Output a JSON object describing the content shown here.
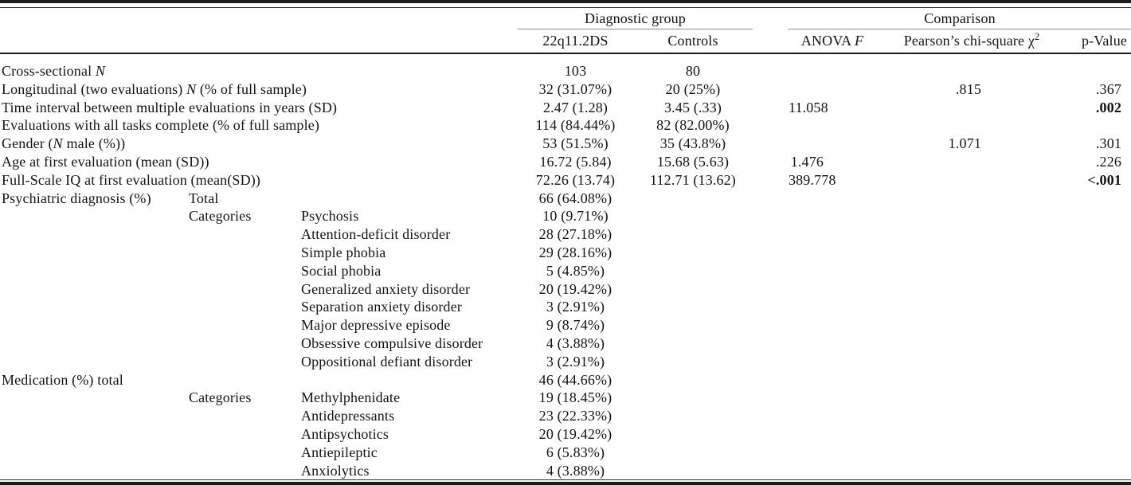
{
  "table": {
    "spanners": {
      "diagnostic": "Diagnostic group",
      "comparison": "Comparison"
    },
    "columns": {
      "ds": "22q11.2DS",
      "controls": "Controls",
      "anova": "ANOVA *F*",
      "chi": "Pearson’s chi-square χ^2",
      "p": "p-Value"
    },
    "rows": [
      {
        "label": "Cross-sectional *N*",
        "ds": "103",
        "controls": "80"
      },
      {
        "label": "Longitudinal (two evaluations) *N* (% of full sample)",
        "ds": "32 (31.07%)",
        "controls": "20 (25%)",
        "chi": ".815",
        "p": ".367"
      },
      {
        "label": "Time interval between multiple evaluations in years (SD)",
        "ds": "2.47 (1.28)",
        "controls": "3.45 (.33)",
        "anova": "11.058",
        "p": ".002",
        "p_bold": true
      },
      {
        "label": "Evaluations with all tasks complete (% of full sample)",
        "ds": "114 (84.44%)",
        "controls": "82 (82.00%)"
      },
      {
        "label": "Gender (*N* male (%))",
        "ds": "53 (51.5%)",
        "controls": "35 (43.8%)",
        "chi": "1.071",
        "p": ".301"
      },
      {
        "label": "Age at first evaluation (mean (SD))",
        "ds": "16.72 (5.84)",
        "controls": "15.68 (5.63)",
        "anova": "1.476",
        "p": ".226"
      },
      {
        "label": "Full-Scale IQ at first evaluation (mean(SD))",
        "ds": "72.26 (13.74)",
        "controls": "112.71 (13.62)",
        "anova": "389.778",
        "p": "<.001",
        "p_bold": true
      },
      {
        "label": "Psychiatric diagnosis (%)",
        "sub": "Total",
        "ds": "66 (64.08%)"
      },
      {
        "sub": "Categories",
        "cat": "Psychosis",
        "ds": "10 (9.71%)"
      },
      {
        "cat": "Attention-deficit disorder",
        "ds": "28 (27.18%)"
      },
      {
        "cat": "Simple phobia",
        "ds": "29 (28.16%)"
      },
      {
        "cat": "Social phobia",
        "ds": "5 (4.85%)"
      },
      {
        "cat": "Generalized anxiety disorder",
        "ds": "20 (19.42%)"
      },
      {
        "cat": "Separation anxiety disorder",
        "ds": "3 (2.91%)"
      },
      {
        "cat": "Major depressive episode",
        "ds": "9 (8.74%)"
      },
      {
        "cat": "Obsessive compulsive disorder",
        "ds": "4 (3.88%)"
      },
      {
        "cat": "Oppositional defiant disorder",
        "ds": "3 (2.91%)"
      },
      {
        "label": "Medication (%) total",
        "ds": "46 (44.66%)"
      },
      {
        "sub": "Categories",
        "cat": "Methylphenidate",
        "ds": "19 (18.45%)"
      },
      {
        "cat": "Antidepressants",
        "ds": "23 (22.33%)"
      },
      {
        "cat": "Antipsychotics",
        "ds": "20 (19.42%)"
      },
      {
        "cat": "Antiepileptic",
        "ds": "6 (5.83%)"
      },
      {
        "cat": "Anxiolytics",
        "ds": "4 (3.88%)"
      }
    ]
  }
}
